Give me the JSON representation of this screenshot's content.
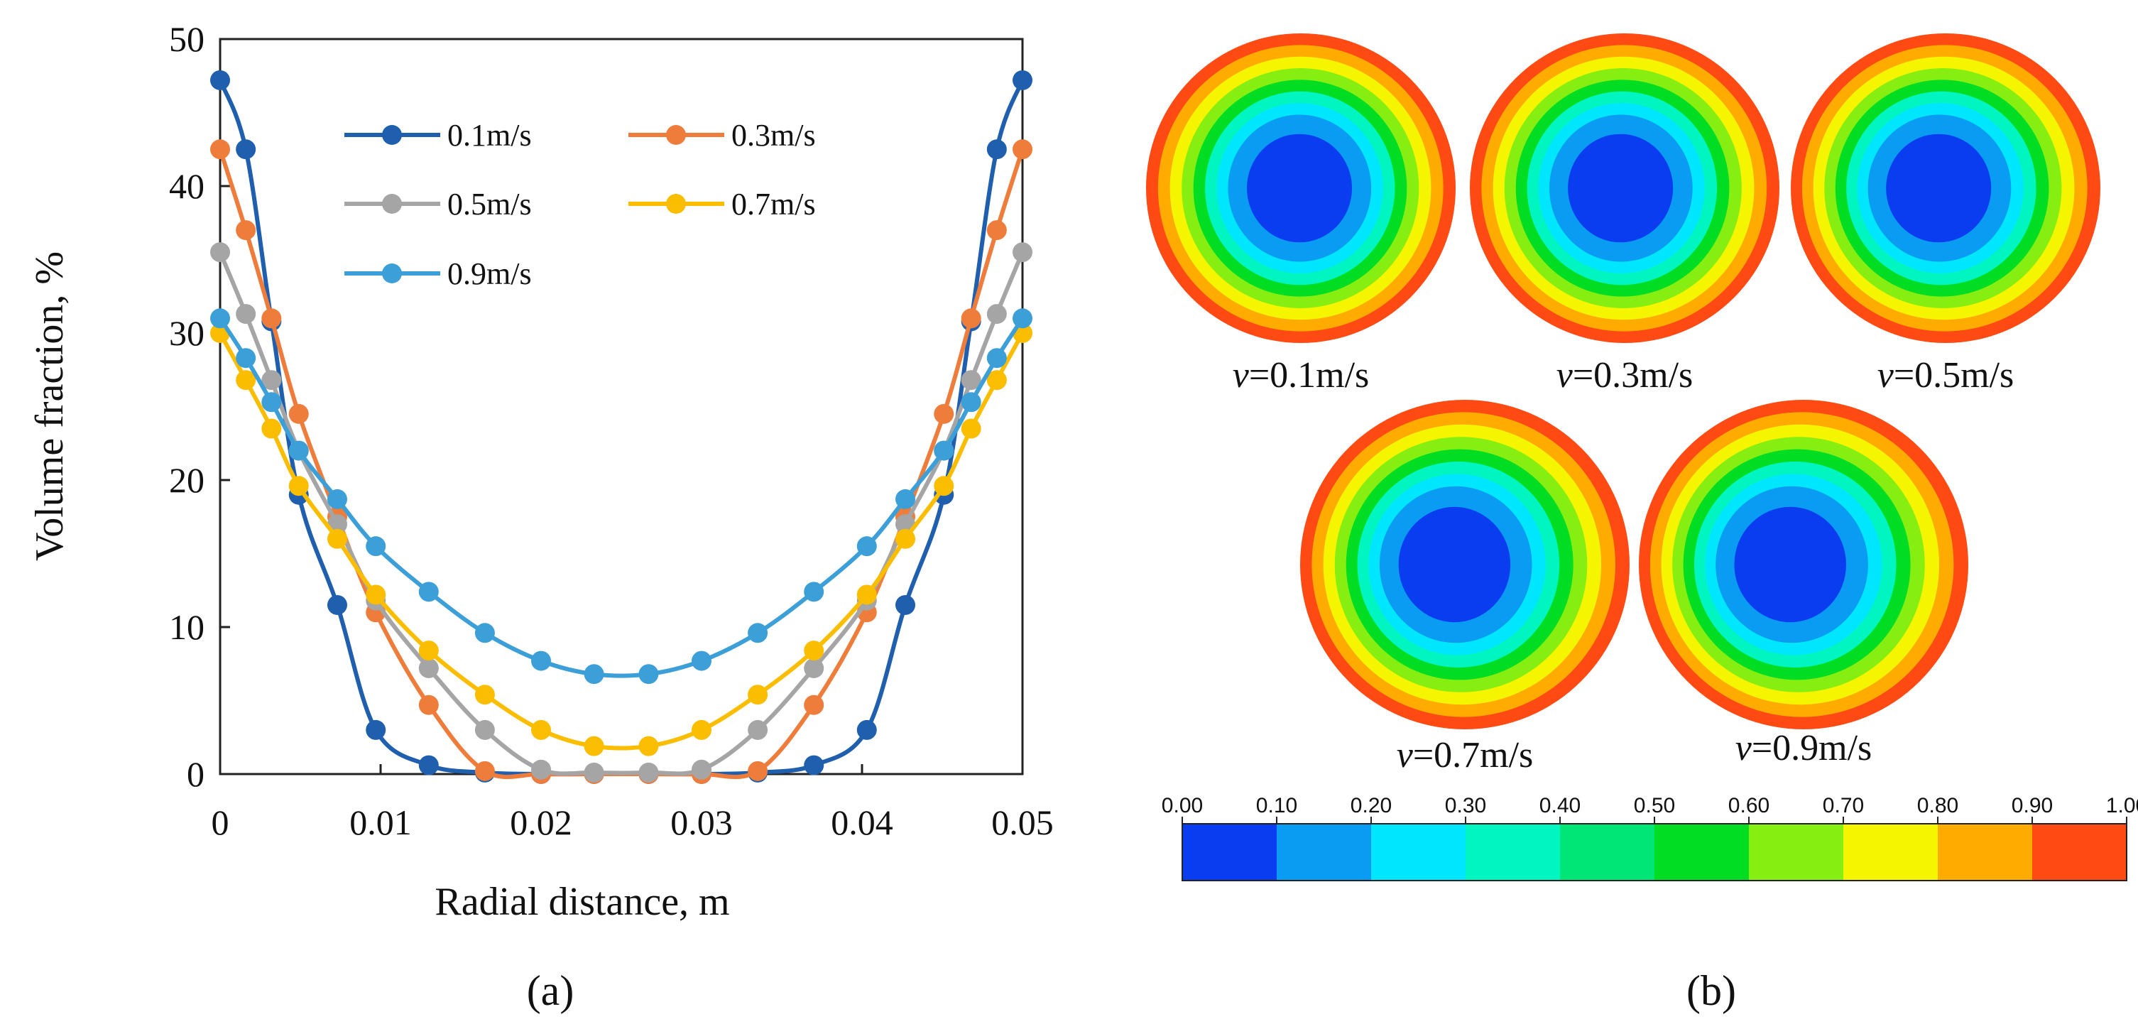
{
  "chart_data": [
    {
      "type": "line",
      "panel": "(a)",
      "xlabel": "Radial distance, m",
      "ylabel": "Volume fraction, %",
      "xlim": [
        0,
        0.05
      ],
      "ylim": [
        0,
        50
      ],
      "xticks": [
        "0",
        "0.01",
        "0.02",
        "0.03",
        "0.04",
        "0.05"
      ],
      "xtick_values": [
        0,
        0.01,
        0.02,
        0.03,
        0.04,
        0.05
      ],
      "yticks": [
        "0",
        "10",
        "20",
        "30",
        "40",
        "50"
      ],
      "ytick_values": [
        0,
        10,
        20,
        30,
        40,
        50
      ],
      "legend_position": "top-center",
      "x": [
        0,
        0.0016,
        0.0032,
        0.0049,
        0.0073,
        0.0097,
        0.013,
        0.0165,
        0.02,
        0.0233,
        0.0267,
        0.03,
        0.0335,
        0.037,
        0.0403,
        0.0427,
        0.0451,
        0.0468,
        0.0484,
        0.05
      ],
      "series": [
        {
          "name": "0.1m/s",
          "color": "#1f5fae",
          "values": [
            47.2,
            42.5,
            30.8,
            19.0,
            11.5,
            3.0,
            0.6,
            0.1,
            0.0,
            0.0,
            0.0,
            0.0,
            0.1,
            0.6,
            3.0,
            11.5,
            19.0,
            30.8,
            42.5,
            47.2
          ]
        },
        {
          "name": "0.3m/s",
          "color": "#ee7d3c",
          "values": [
            42.5,
            37.0,
            31.0,
            24.5,
            17.5,
            11.0,
            4.7,
            0.2,
            0.0,
            0.0,
            0.0,
            0.0,
            0.2,
            4.7,
            11.0,
            17.5,
            24.5,
            31.0,
            37.0,
            42.5
          ]
        },
        {
          "name": "0.5m/s",
          "color": "#a5a5a5",
          "values": [
            35.5,
            31.3,
            26.8,
            22.0,
            17.0,
            11.8,
            7.2,
            3.0,
            0.3,
            0.1,
            0.1,
            0.3,
            3.0,
            7.2,
            11.8,
            17.0,
            22.0,
            26.8,
            31.3,
            35.5
          ]
        },
        {
          "name": "0.7m/s",
          "color": "#fbbd00",
          "values": [
            30.0,
            26.8,
            23.5,
            19.6,
            16.0,
            12.2,
            8.4,
            5.4,
            3.0,
            1.9,
            1.9,
            3.0,
            5.4,
            8.4,
            12.2,
            16.0,
            19.6,
            23.5,
            26.8,
            30.0
          ]
        },
        {
          "name": "0.9m/s",
          "color": "#3c9fd8",
          "values": [
            31.0,
            28.3,
            25.3,
            22.0,
            18.7,
            15.5,
            12.4,
            9.6,
            7.7,
            6.8,
            6.8,
            7.7,
            9.6,
            12.4,
            15.5,
            18.7,
            22.0,
            25.3,
            28.3,
            31.0
          ]
        }
      ]
    },
    {
      "type": "heatmap",
      "panel": "(b)",
      "description_labels": [
        "v=0.1m/s",
        "v=0.3m/s",
        "v=0.5m/s",
        "v=0.7m/s",
        "v=0.9m/s"
      ],
      "colorbar_ticks": [
        "0.00",
        "0.10",
        "0.20",
        "0.30",
        "0.40",
        "0.50",
        "0.60",
        "0.70",
        "0.80",
        "0.90",
        "1.00"
      ],
      "colorbar_colors": [
        "#0a3cf0",
        "#0a9cf2",
        "#00e6ff",
        "#00f5c0",
        "#00e676",
        "#00dd22",
        "#86ee10",
        "#f5f500",
        "#ffab00",
        "#ff4a14"
      ]
    }
  ],
  "labels": {
    "panel_a": "(a)",
    "panel_b": "(b)",
    "v_prefix": "v",
    "contours": [
      "=0.1m/s",
      "=0.3m/s",
      "=0.5m/s",
      "=0.7m/s",
      "=0.9m/s"
    ]
  },
  "contour_levels": [
    {
      "value": "1.00",
      "color": "#ff4a14"
    },
    {
      "value": "0.90",
      "color": "#ffab00"
    },
    {
      "value": "0.80",
      "color": "#f5f500"
    },
    {
      "value": "0.70",
      "color": "#86ee10"
    },
    {
      "value": "0.60",
      "color": "#00dd22"
    },
    {
      "value": "0.40",
      "color": "#00f5c0"
    },
    {
      "value": "0.20",
      "color": "#00e6ff"
    },
    {
      "value": "0.10",
      "color": "#0a9cf2"
    },
    {
      "value": "0.00",
      "color": "#0a3cf0"
    }
  ],
  "contour_asymmetry": [
    0.1,
    0.3,
    0.5,
    0.7,
    0.9
  ]
}
